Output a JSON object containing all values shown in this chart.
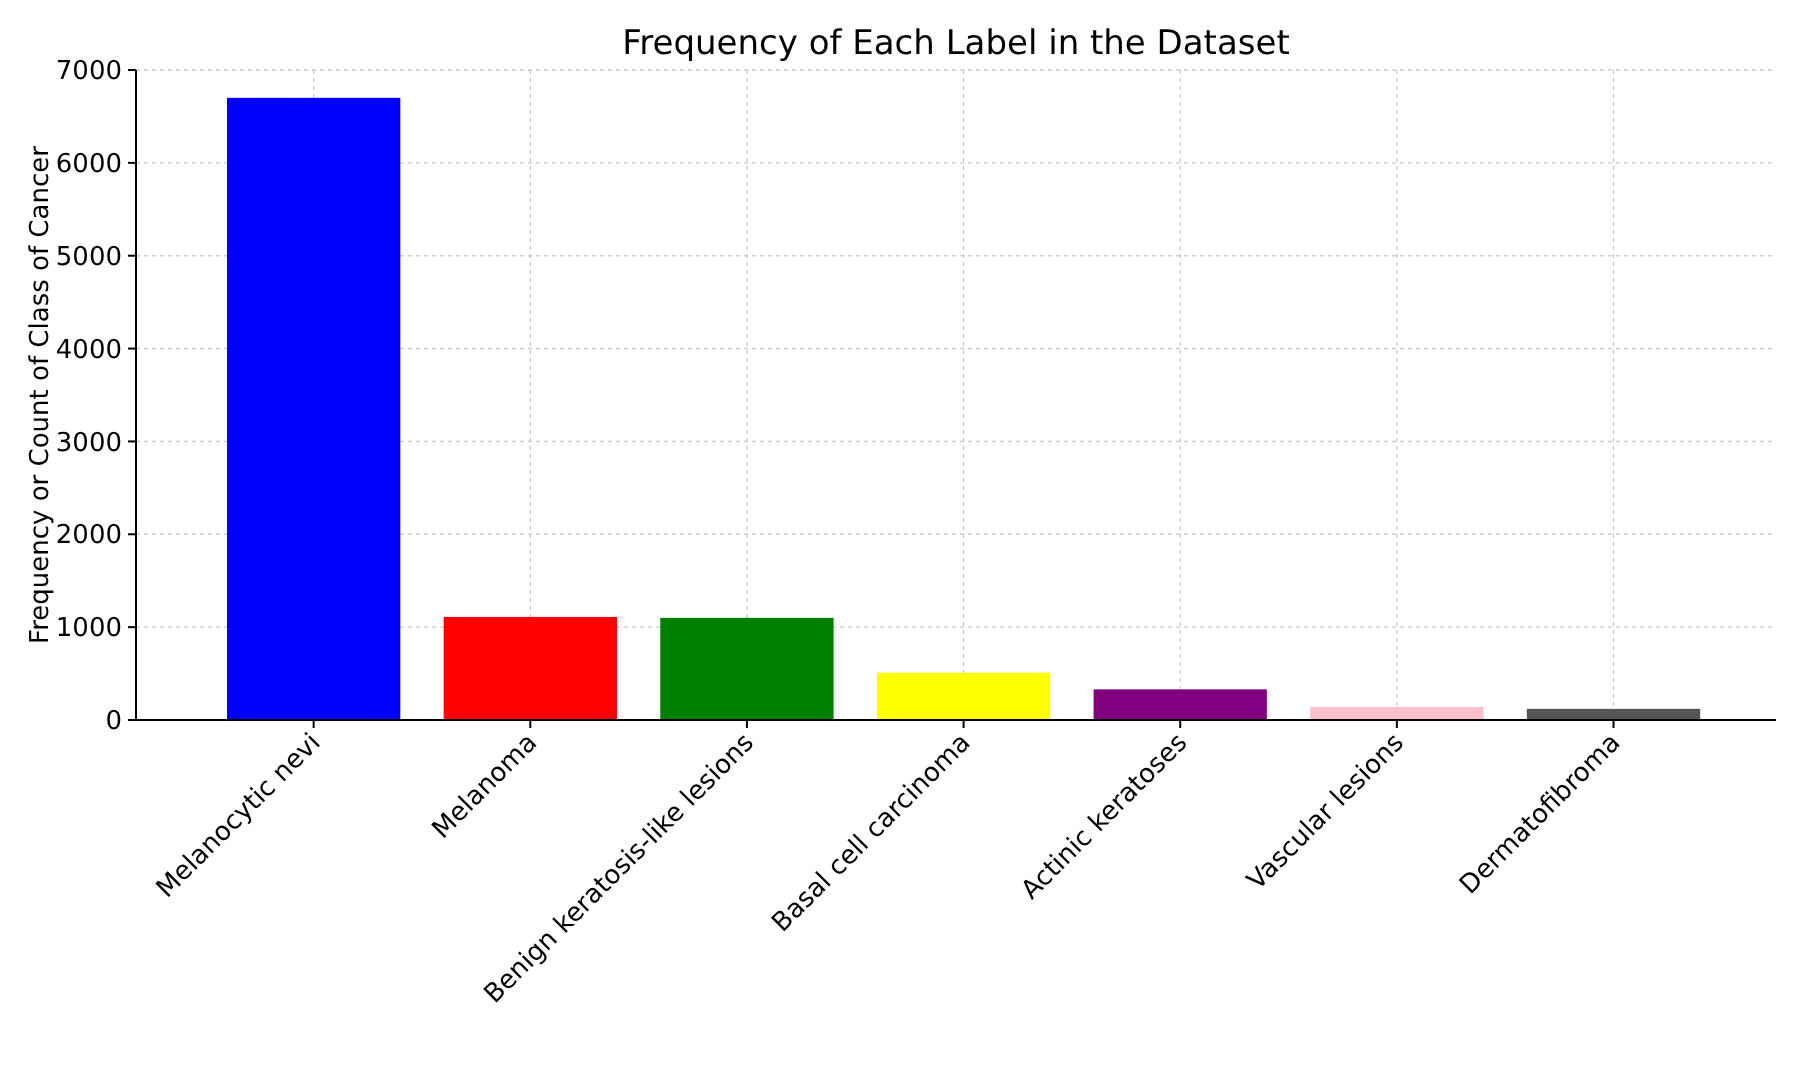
{
  "chart_data": {
    "type": "bar",
    "title": "Frequency of Each Label in the Dataset",
    "ylabel": "Frequency or Count of Class of Cancer",
    "categories": [
      "Melanocytic nevi",
      "Melanoma",
      "Benign keratosis-like lesions",
      "Basal cell carcinoma",
      "Actinic keratoses",
      "Vascular lesions",
      "Dermatofibroma"
    ],
    "values": [
      6700,
      1110,
      1100,
      510,
      330,
      140,
      120
    ],
    "colors": [
      "#0000ff",
      "#ff0000",
      "#008000",
      "#ffff00",
      "#800080",
      "#ffc0cb",
      "#555555"
    ],
    "ylim": [
      0,
      7000
    ],
    "yticks": [
      0,
      1000,
      2000,
      3000,
      4000,
      5000,
      6000,
      7000
    ],
    "grid": true
  }
}
